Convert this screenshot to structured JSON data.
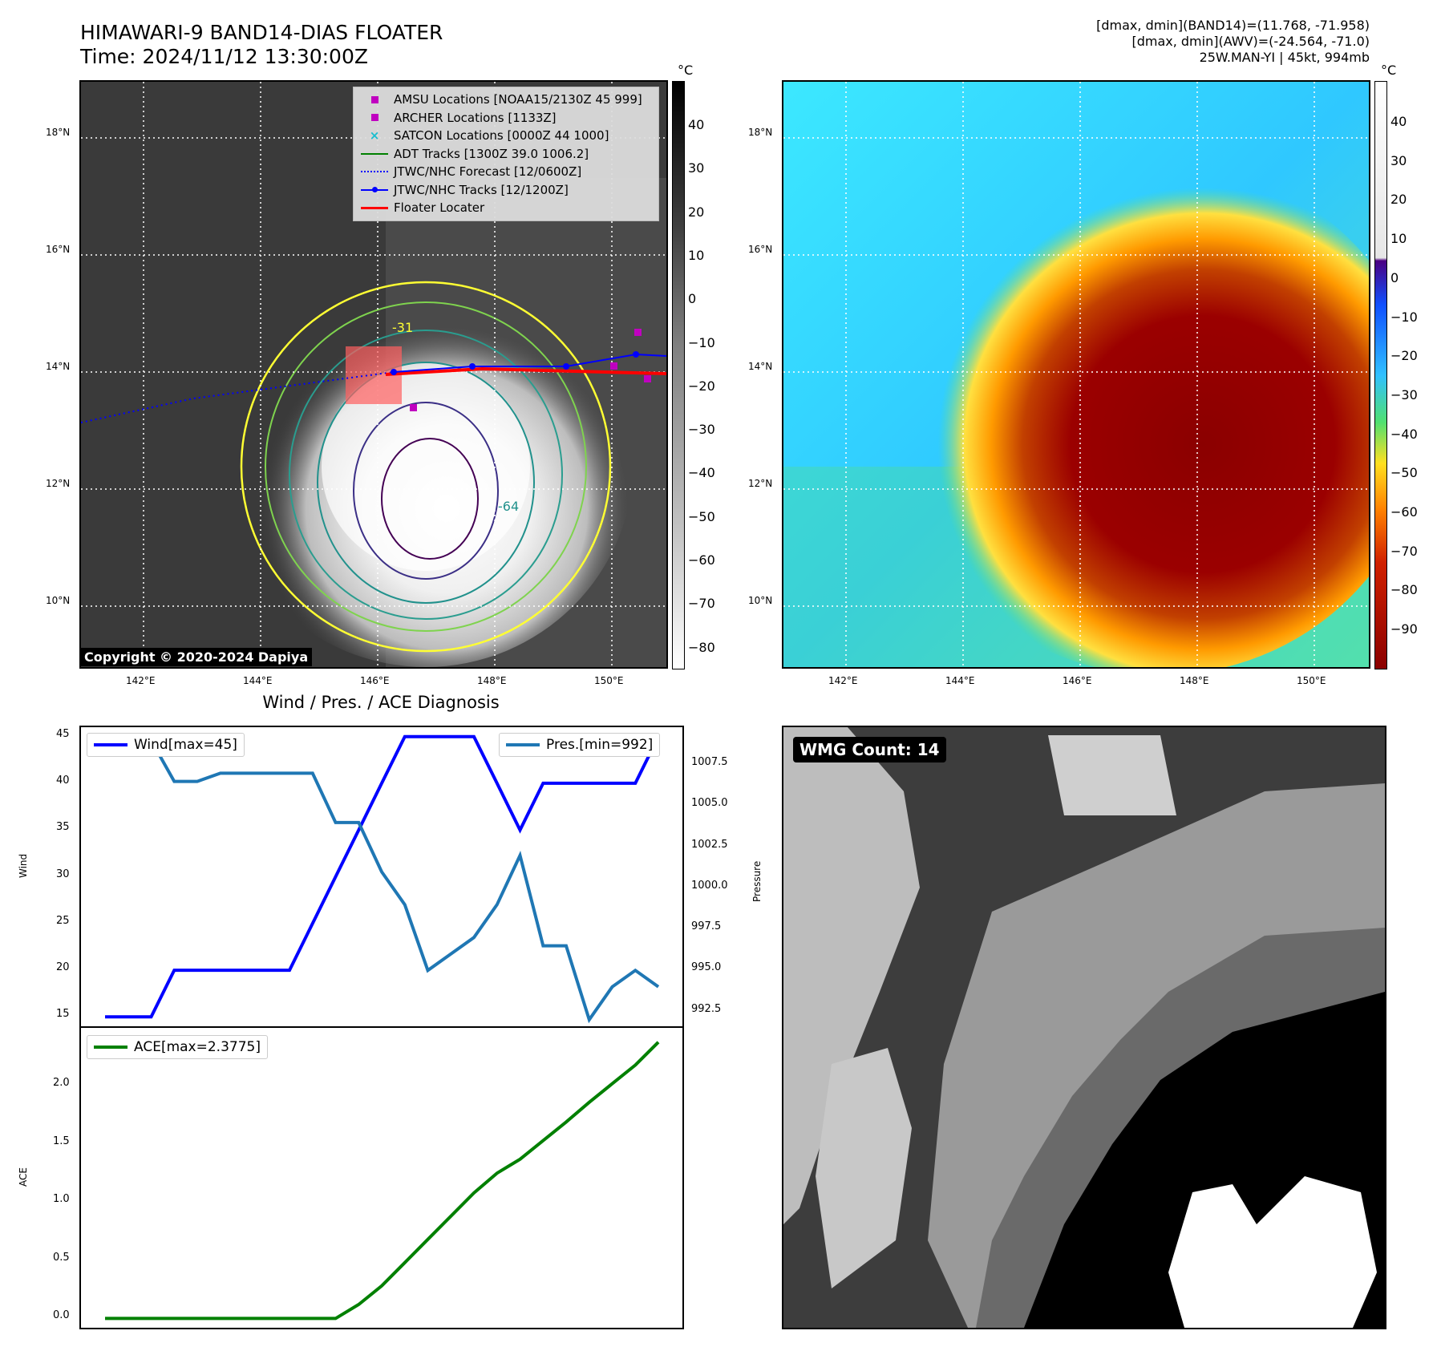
{
  "header": {
    "title_line1": "HIMAWARI-9 BAND14-DIAS FLOATER",
    "title_line2": "Time: 2024/11/12 13:30:00Z",
    "info_line1": "[dmax, dmin](BAND14)=(11.768, -71.958)",
    "info_line2": "[dmax, dmin](AWV)=(-24.564, -71.0)",
    "info_line3": "25W.MAN-YI | 45kt, 994mb"
  },
  "map_axes": {
    "lon_labels": [
      "142°E",
      "144°E",
      "146°E",
      "148°E",
      "150°E"
    ],
    "lat_labels": [
      "18°N",
      "16°N",
      "14°N",
      "12°N",
      "10°N"
    ]
  },
  "left_map": {
    "legend": [
      {
        "label": "AMSU Locations [NOAA15/2130Z 45 999]",
        "symbol": "square",
        "color": "#c000c0"
      },
      {
        "label": "ARCHER Locations [1133Z]",
        "symbol": "square",
        "color": "#c000c0"
      },
      {
        "label": "SATCON Locations [0000Z 44 1000]",
        "symbol": "x",
        "color": "#17becf"
      },
      {
        "label": "ADT Tracks [1300Z 39.0 1006.2]",
        "symbol": "line",
        "color": "#008000"
      },
      {
        "label": "JTWC/NHC Forecast [12/0600Z]",
        "symbol": "dotted",
        "color": "#0000ff"
      },
      {
        "label": "JTWC/NHC Tracks [12/1200Z]",
        "symbol": "line-dot",
        "color": "#0000ff"
      },
      {
        "label": "Floater Locater",
        "symbol": "line",
        "color": "#ff0000"
      }
    ],
    "contour_labels": [
      "-31",
      "-64"
    ],
    "colorbar_unit": "°C",
    "colorbar_ticks": [
      "40",
      "30",
      "20",
      "10",
      "0",
      "−10",
      "−20",
      "−30",
      "−40",
      "−50",
      "−60",
      "−70",
      "−80"
    ],
    "copyright": "Copyright © 2020-2024 Dapiya"
  },
  "right_map": {
    "colorbar_unit": "°C",
    "colorbar_ticks": [
      "40",
      "30",
      "20",
      "10",
      "0",
      "−10",
      "−20",
      "−30",
      "−40",
      "−50",
      "−60",
      "−70",
      "−80",
      "−90"
    ]
  },
  "diagnosis": {
    "title": "Wind / Pres. / ACE Diagnosis",
    "wind_axis_label": "Wind",
    "pressure_axis_label": "Pressure",
    "ace_axis_label": "ACE",
    "wind_ticks": [
      "45",
      "40",
      "35",
      "30",
      "25",
      "20",
      "15"
    ],
    "pressure_ticks": [
      "1007.5",
      "1005.0",
      "1002.5",
      "1000.0",
      "997.5",
      "995.0",
      "992.5"
    ],
    "ace_ticks": [
      "2.0",
      "1.5",
      "1.0",
      "0.5",
      "0.0"
    ],
    "wind_legend": "Wind[max=45]",
    "pressure_legend": "Pres.[min=992]",
    "ace_legend": "ACE[max=2.3775]"
  },
  "wmg": {
    "label": "WMG Count: 14"
  },
  "chart_data": [
    {
      "type": "line",
      "title": "Wind / Pres. / ACE Diagnosis",
      "ylabel": "Wind",
      "ylim": [
        14,
        46
      ],
      "x": [
        0,
        1,
        2,
        3,
        4,
        5,
        6,
        7,
        8,
        9,
        10,
        11,
        12,
        13,
        14,
        15,
        16,
        17,
        18,
        19,
        20,
        21,
        22,
        23,
        24
      ],
      "series": [
        {
          "name": "Wind[max=45]",
          "color": "#0000ff",
          "values": [
            15,
            15,
            15,
            20,
            20,
            20,
            20,
            20,
            20,
            25,
            30,
            35,
            40,
            45,
            45,
            45,
            45,
            40,
            35,
            40,
            40,
            40,
            40,
            40,
            45
          ]
        }
      ]
    },
    {
      "type": "line",
      "ylabel": "Pressure",
      "ylim": [
        991.6,
        1009.8
      ],
      "x": [
        0,
        1,
        2,
        3,
        4,
        5,
        6,
        7,
        8,
        9,
        10,
        11,
        12,
        13,
        14,
        15,
        16,
        17,
        18,
        19,
        20,
        21,
        22,
        23,
        24
      ],
      "series": [
        {
          "name": "Pres.[min=992]",
          "color": "#1f77b4",
          "values": [
            1009,
            1009,
            1009,
            1006.5,
            1006.5,
            1007,
            1007,
            1007,
            1007,
            1007,
            1004,
            1004,
            1001,
            999,
            995,
            996,
            997,
            999,
            1002,
            996.5,
            996.5,
            992,
            994,
            995,
            994
          ]
        }
      ]
    },
    {
      "type": "line",
      "ylabel": "ACE",
      "ylim": [
        -0.08,
        2.5
      ],
      "x": [
        0,
        1,
        2,
        3,
        4,
        5,
        6,
        7,
        8,
        9,
        10,
        11,
        12,
        13,
        14,
        15,
        16,
        17,
        18,
        19,
        20,
        21,
        22,
        23,
        24
      ],
      "series": [
        {
          "name": "ACE[max=2.3775]",
          "color": "#008000",
          "values": [
            0,
            0,
            0,
            0,
            0,
            0,
            0,
            0,
            0,
            0,
            0,
            0.12,
            0.28,
            0.48,
            0.68,
            0.88,
            1.08,
            1.25,
            1.37,
            1.53,
            1.69,
            1.86,
            2.02,
            2.18,
            2.3775
          ]
        }
      ]
    }
  ]
}
